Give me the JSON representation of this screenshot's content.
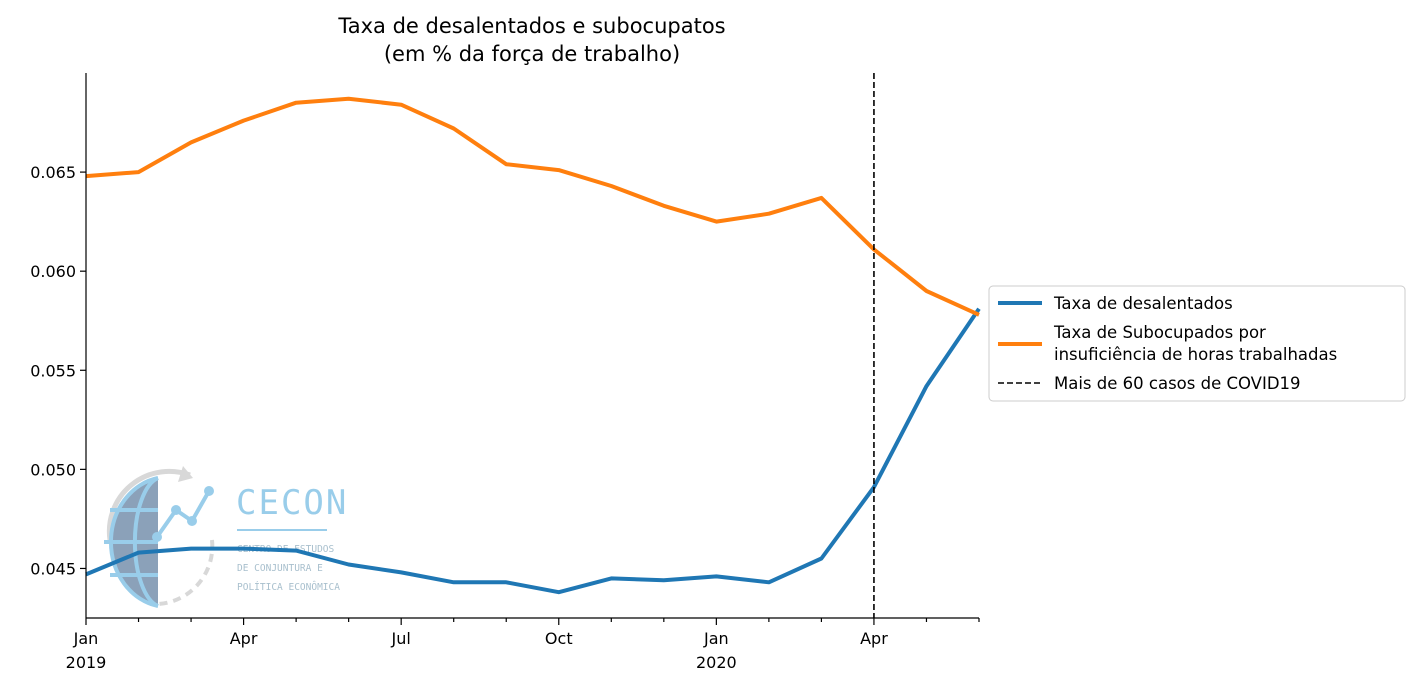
{
  "chart_data": {
    "type": "line",
    "title": "Taxa de desalentados e subocupatos",
    "subtitle": "(em % da força de trabalho)",
    "xlabel": "",
    "ylabel": "",
    "x": [
      "2019-01",
      "2019-02",
      "2019-03",
      "2019-04",
      "2019-05",
      "2019-06",
      "2019-07",
      "2019-08",
      "2019-09",
      "2019-10",
      "2019-11",
      "2019-12",
      "2020-01",
      "2020-02",
      "2020-03",
      "2020-04",
      "2020-05",
      "2020-06"
    ],
    "x_ticks": [
      {
        "x": "2019-01",
        "label": "Jan",
        "sublabel": "2019"
      },
      {
        "x": "2019-04",
        "label": "Apr",
        "sublabel": ""
      },
      {
        "x": "2019-07",
        "label": "Jul",
        "sublabel": ""
      },
      {
        "x": "2019-10",
        "label": "Oct",
        "sublabel": ""
      },
      {
        "x": "2020-01",
        "label": "Jan",
        "sublabel": "2020"
      },
      {
        "x": "2020-04",
        "label": "Apr",
        "sublabel": ""
      }
    ],
    "y_ticks": [
      "0.045",
      "0.050",
      "0.055",
      "0.060",
      "0.065"
    ],
    "ylim": [
      0.0425,
      0.07
    ],
    "series": [
      {
        "name": "Taxa de desalentados",
        "color": "#1f77b4",
        "values": [
          0.0447,
          0.0458,
          0.046,
          0.046,
          0.0459,
          0.0452,
          0.0448,
          0.0443,
          0.0443,
          0.0438,
          0.0445,
          0.0444,
          0.0446,
          0.0443,
          0.0455,
          0.0491,
          0.0542,
          0.0581
        ]
      },
      {
        "name": "Taxa de Subocupados por",
        "name_line2": "insuficiência de horas trabalhadas",
        "color": "#ff7f0e",
        "values": [
          0.0648,
          0.065,
          0.0665,
          0.0676,
          0.0685,
          0.0687,
          0.0684,
          0.0672,
          0.0654,
          0.0651,
          0.0643,
          0.0633,
          0.0625,
          0.0629,
          0.0637,
          0.0611,
          0.059,
          0.0578
        ]
      }
    ],
    "vline": {
      "x": "2020-04",
      "label": "Mais de 60 casos de COVID19",
      "color": "#000000",
      "style": "dashed"
    },
    "legend_position": "center-right, outside plot",
    "grid": false
  },
  "watermark": {
    "name": "CECON",
    "line1": "CENTRO DE ESTUDOS",
    "line2": "DE CONJUNTURA E",
    "line3": "POLÍTICA ECONÔMICA"
  }
}
